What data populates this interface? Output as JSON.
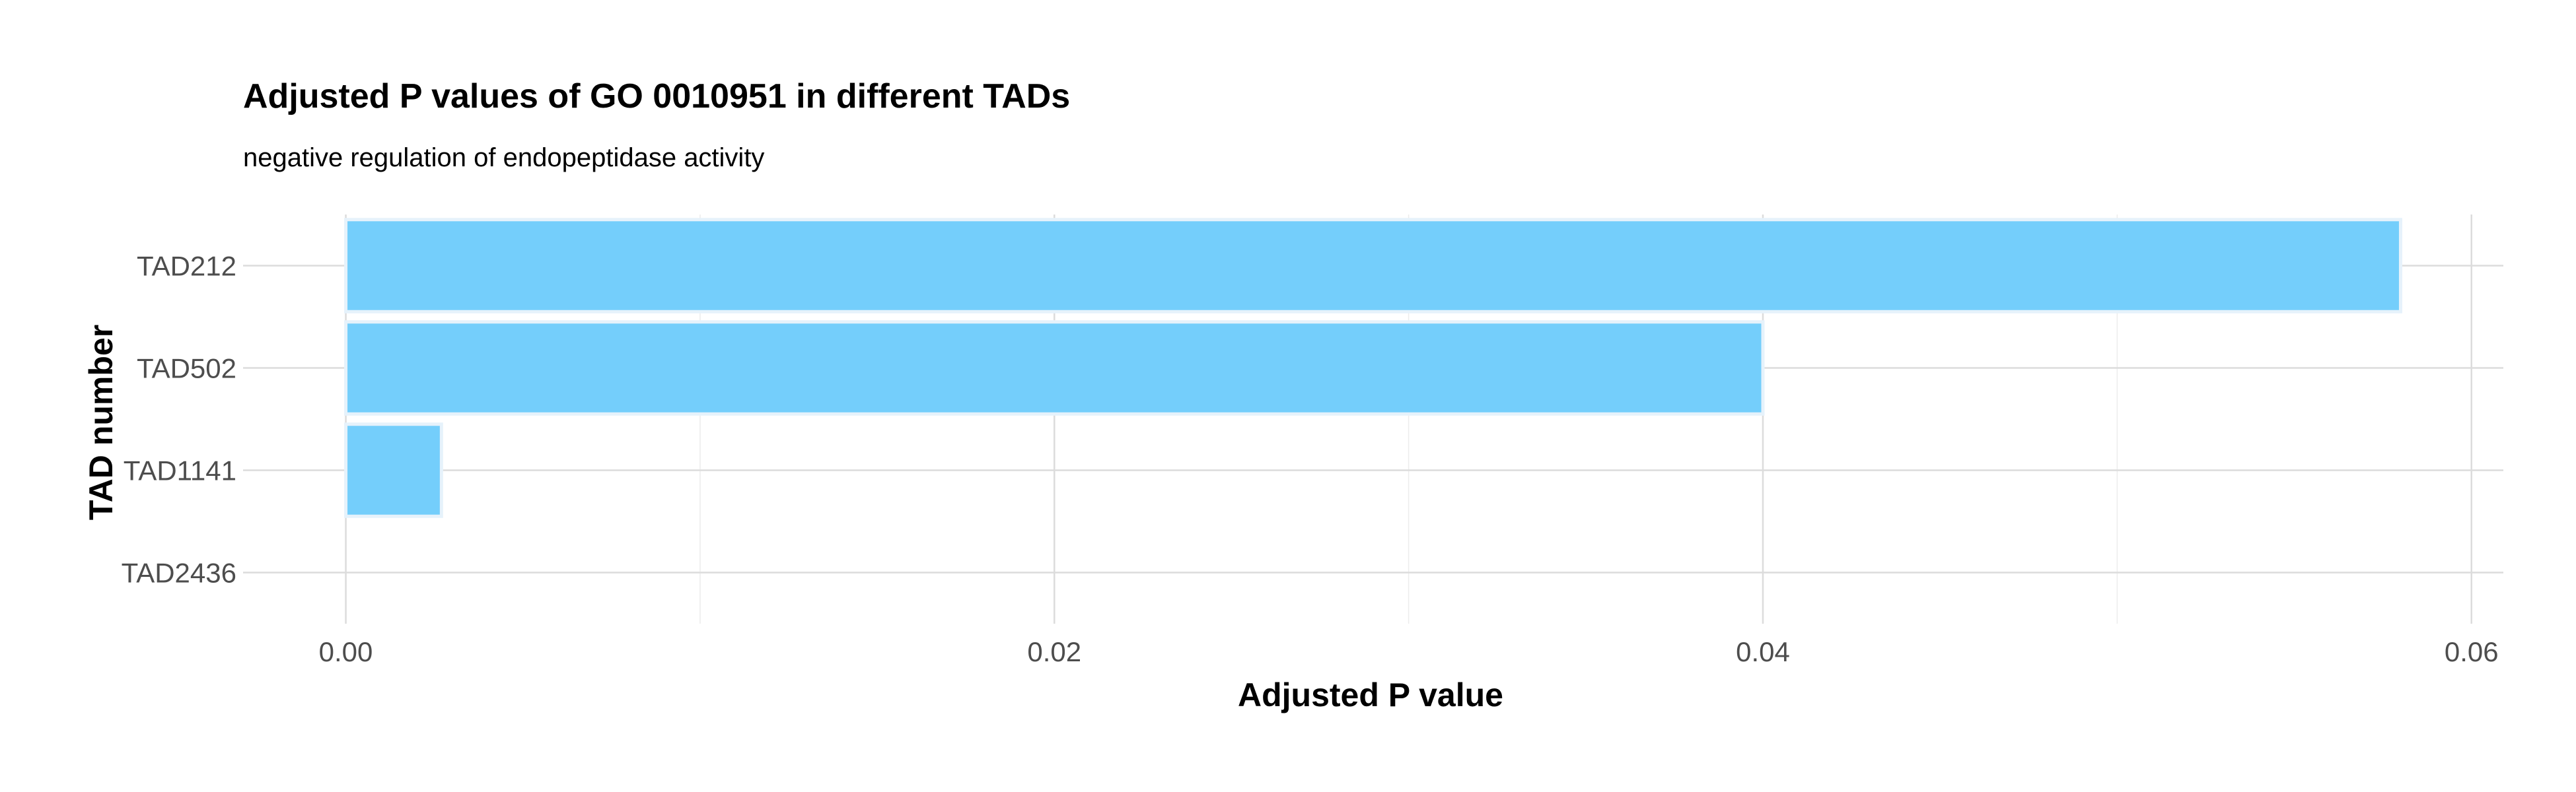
{
  "chart_data": {
    "type": "bar",
    "orientation": "horizontal",
    "title": "Adjusted P values of GO 0010951 in different TADs",
    "subtitle": "negative regulation of endopeptidase activity",
    "xlabel": "Adjusted P value",
    "ylabel": "TAD number",
    "categories": [
      "TAD212",
      "TAD502",
      "TAD1141",
      "TAD2436"
    ],
    "values": [
      0.058,
      0.04,
      0.0027,
      0.0
    ],
    "xlim": [
      -0.0029,
      0.0609
    ],
    "x_ticks": [
      0.0,
      0.02,
      0.04,
      0.06
    ],
    "x_tick_labels": [
      "0.00",
      "0.02",
      "0.04",
      "0.06"
    ],
    "x_minor_ticks": [
      0.01,
      0.03,
      0.05
    ],
    "grid": true,
    "legend": "none",
    "colors": {
      "bar_fill": "#74cefb",
      "bar_outline": "#e6f2fb"
    }
  }
}
